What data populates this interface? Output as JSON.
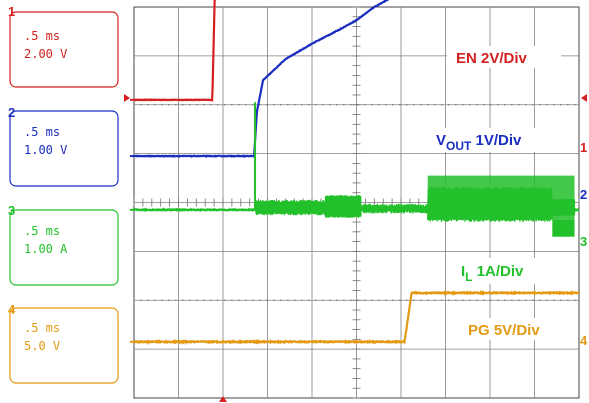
{
  "chart_data": {
    "type": "line",
    "x_units": "ms",
    "x_range": [
      0,
      5
    ],
    "y_range_div": [
      0,
      8
    ],
    "channels": [
      {
        "number": "1",
        "timebase": ".5 ms",
        "scale": "2.00 V",
        "label": "EN 2V/Div",
        "color": "#d42020",
        "ground_div": 6.1,
        "x": [
          0,
          0.88,
          0.91,
          1.02,
          5.0
        ],
        "y": [
          0,
          0,
          2.35,
          2.38,
          2.38
        ],
        "noise": 0.005,
        "ticks": [
          0.31,
          1.75,
          3.19,
          4.63
        ]
      },
      {
        "number": "2",
        "timebase": ".5 ms",
        "scale": "1.00 V",
        "label_main": "V",
        "label_sub": "OUT",
        "label_rest": " 1V/Div",
        "color": "#1a2ec0",
        "ground_div": 4.95,
        "x": [
          0,
          1.35,
          1.38,
          1.45,
          1.7,
          2.0,
          2.3,
          2.5,
          2.7,
          2.9,
          3.1,
          3.3,
          5.0
        ],
        "y": [
          0,
          0,
          0.9,
          1.55,
          1.98,
          2.3,
          2.58,
          2.78,
          3.05,
          3.25,
          3.38,
          3.42,
          3.42
        ],
        "noise": 0.006
      },
      {
        "number": "3",
        "timebase": ".5 ms",
        "scale": "1.00 A",
        "label_main": "I",
        "label_sub": "L",
        "label_rest": "  1A/Div",
        "color": "#22c02a",
        "ground_div": 3.85,
        "x": [
          0,
          1.34,
          1.37,
          5.0
        ],
        "y": [
          0,
          0,
          0,
          0
        ],
        "noise": 0.01
      },
      {
        "number": "4",
        "timebase": ".5 ms",
        "scale": "5.0 V",
        "label": "PG 5V/Div",
        "color": "#e39a12",
        "ground_div": 1.15,
        "x": [
          0,
          3.04,
          3.12,
          5.0
        ],
        "y": [
          0,
          0,
          1.0,
          1.0
        ],
        "noise": 0.012
      }
    ],
    "grid": true,
    "subdivisions": 5
  }
}
